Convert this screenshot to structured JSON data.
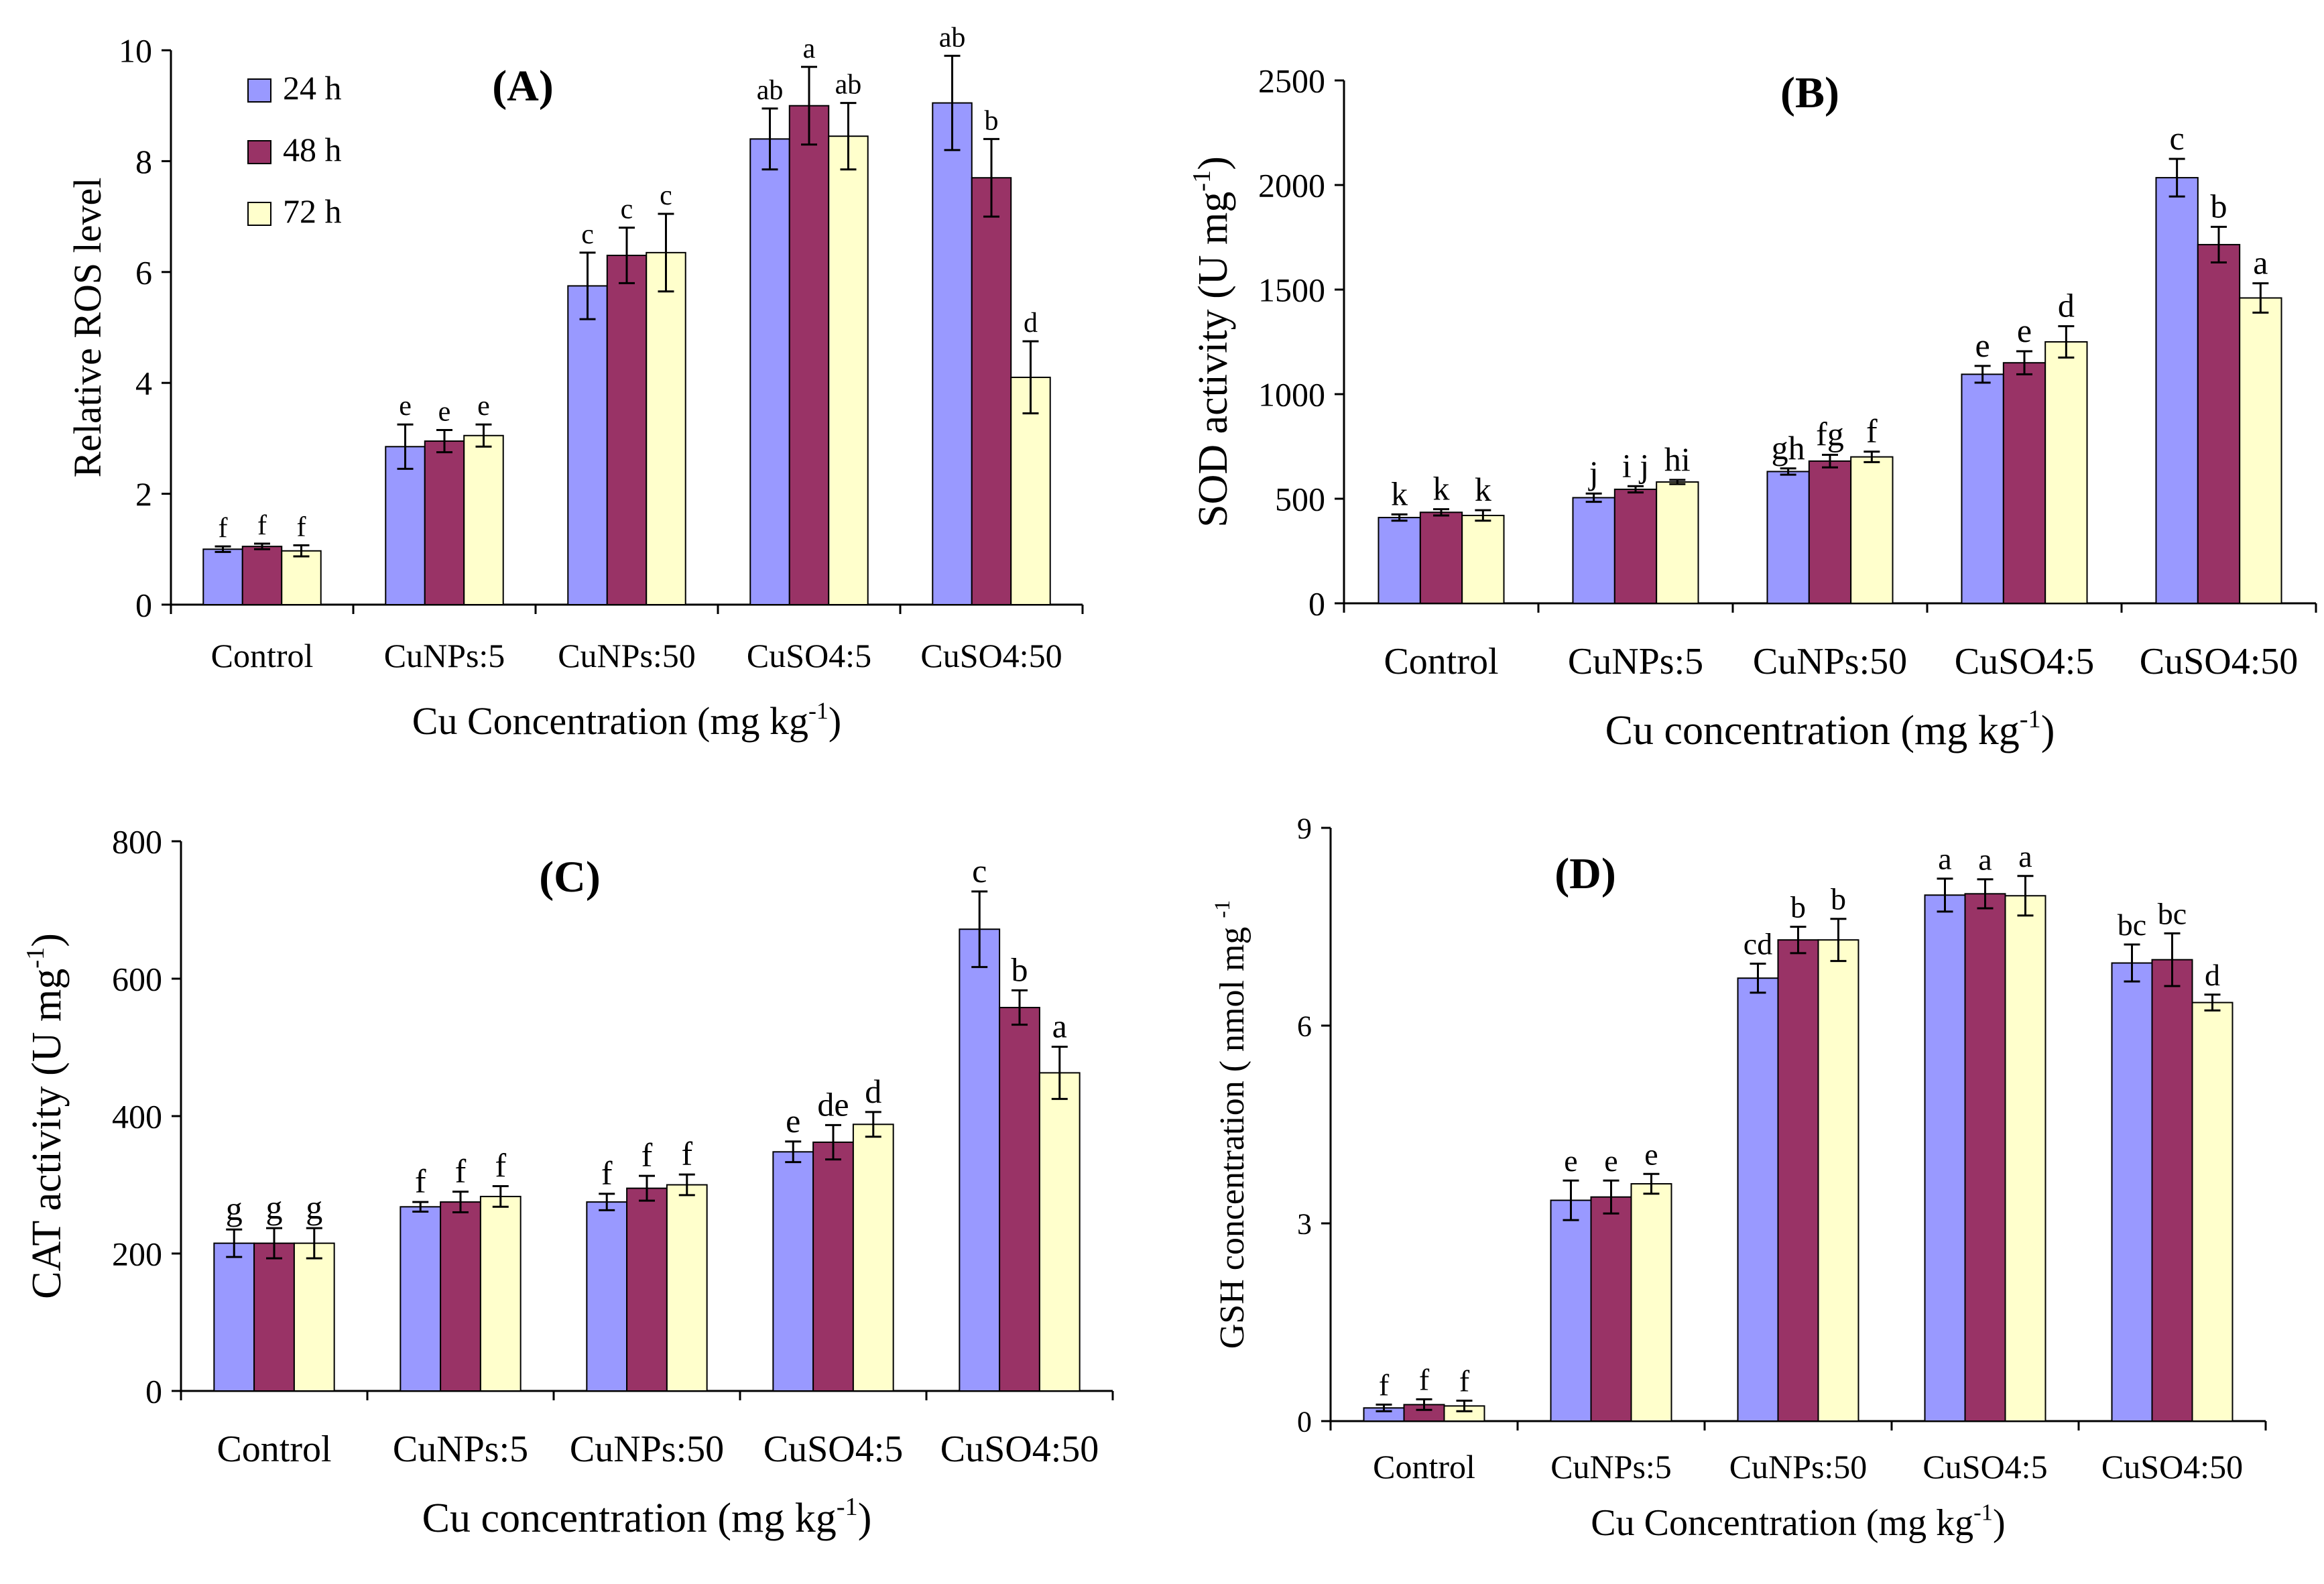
{
  "colors": {
    "s24": "#9999ff",
    "s48": "#993366",
    "s72": "#ffffcc",
    "outline": "#000000"
  },
  "legend": [
    "24 h",
    "48 h",
    "72 h"
  ],
  "chart_data": [
    {
      "type": "bar",
      "panel": "(A)",
      "ylabel": "Relative ROS level",
      "xlabel": "Cu Concentration (mg kg",
      "xlabel_sup": "-1",
      "xlabel_end": ")",
      "categories": [
        "Control",
        "CuNPs:5",
        "CuNPs:50",
        "CuSO4:5",
        "CuSO4:50"
      ],
      "ylim": [
        0,
        10
      ],
      "yticks": [
        "0",
        "2",
        "4",
        "6",
        "8",
        "10"
      ],
      "legend_position": "top-left",
      "series": [
        {
          "name": "24 h",
          "values": [
            1.0,
            2.85,
            5.75,
            8.4,
            9.05
          ],
          "errors": [
            0.05,
            0.4,
            0.6,
            0.55,
            0.85
          ],
          "letters": [
            "f",
            "e",
            "c",
            "ab",
            "ab"
          ]
        },
        {
          "name": "48 h",
          "values": [
            1.05,
            2.95,
            6.3,
            9.0,
            7.7
          ],
          "errors": [
            0.05,
            0.2,
            0.5,
            0.7,
            0.7
          ],
          "letters": [
            "f",
            "e",
            "c",
            "a",
            "b"
          ]
        },
        {
          "name": "72 h",
          "values": [
            0.97,
            3.05,
            6.35,
            8.45,
            4.1
          ],
          "errors": [
            0.1,
            0.2,
            0.7,
            0.6,
            0.65
          ],
          "letters": [
            "f",
            "e",
            "c",
            "ab",
            "d"
          ]
        }
      ]
    },
    {
      "type": "bar",
      "panel": "(B)",
      "ylabel": "SOD activity (U mg",
      "ylabel_sup": "-1",
      "ylabel_end": ")",
      "xlabel": "Cu concentration (mg kg",
      "xlabel_sup": "-1",
      "xlabel_end": ")",
      "categories": [
        "Control",
        "CuNPs:5",
        "CuNPs:50",
        "CuSO4:5",
        "CuSO4:50"
      ],
      "ylim": [
        0,
        2500
      ],
      "yticks": [
        "0",
        "500",
        "1000",
        "1500",
        "2000",
        "2500"
      ],
      "series": [
        {
          "name": "24 h",
          "values": [
            410,
            505,
            630,
            1095,
            2035
          ],
          "errors": [
            15,
            20,
            15,
            40,
            90
          ],
          "letters": [
            "k",
            "j",
            "gh",
            "e",
            "c"
          ]
        },
        {
          "name": "48 h",
          "values": [
            435,
            545,
            680,
            1150,
            1715
          ],
          "errors": [
            15,
            15,
            30,
            55,
            85
          ],
          "letters": [
            "k",
            "i j",
            "fg",
            "e",
            "b"
          ]
        },
        {
          "name": "72 h",
          "values": [
            420,
            580,
            700,
            1250,
            1460
          ],
          "errors": [
            25,
            10,
            25,
            75,
            70
          ],
          "letters": [
            "k",
            "hi",
            "f",
            "d",
            "a"
          ]
        }
      ]
    },
    {
      "type": "bar",
      "panel": "(C)",
      "ylabel": "CAT activity (U mg",
      "ylabel_sup": "-1",
      "ylabel_end": ")",
      "xlabel": "Cu concentration (mg kg",
      "xlabel_sup": "-1",
      "xlabel_end": ")",
      "categories": [
        "Control",
        "CuNPs:5",
        "CuNPs:50",
        "CuSO4:5",
        "CuSO4:50"
      ],
      "ylim": [
        0,
        800
      ],
      "yticks": [
        "0",
        "200",
        "400",
        "600",
        "800"
      ],
      "series": [
        {
          "name": "24 h",
          "values": [
            215,
            268,
            275,
            348,
            672
          ],
          "errors": [
            20,
            7,
            12,
            15,
            55
          ],
          "letters": [
            "g",
            "f",
            "f",
            "e",
            "c"
          ]
        },
        {
          "name": "48 h",
          "values": [
            215,
            275,
            295,
            362,
            558
          ],
          "errors": [
            22,
            15,
            18,
            25,
            25
          ],
          "letters": [
            "g",
            "f",
            "f",
            "de",
            "b"
          ]
        },
        {
          "name": "72 h",
          "values": [
            215,
            283,
            300,
            388,
            463
          ],
          "errors": [
            22,
            15,
            15,
            18,
            38
          ],
          "letters": [
            "g",
            "f",
            "f",
            "d",
            "a"
          ]
        }
      ]
    },
    {
      "type": "bar",
      "panel": "(D)",
      "ylabel": "GSH concentration ( nmol mg ",
      "ylabel_sup": "-1",
      "ylabel_end": "",
      "xlabel": "Cu Concentration (mg kg",
      "xlabel_sup": "-1",
      "xlabel_end": ")",
      "categories": [
        "Control",
        "CuNPs:5",
        "CuNPs:50",
        "CuSO4:5",
        "CuSO4:50"
      ],
      "ylim": [
        0,
        9
      ],
      "yticks": [
        "0",
        "3",
        "6",
        "9"
      ],
      "series": [
        {
          "name": "24 h",
          "values": [
            0.2,
            3.35,
            6.72,
            7.98,
            6.95
          ],
          "errors": [
            0.05,
            0.3,
            0.22,
            0.25,
            0.28
          ],
          "letters": [
            "f",
            "e",
            "cd",
            "a",
            "bc"
          ]
        },
        {
          "name": "48 h",
          "values": [
            0.25,
            3.4,
            7.3,
            8.0,
            7.0
          ],
          "errors": [
            0.08,
            0.25,
            0.2,
            0.22,
            0.4
          ],
          "letters": [
            "f",
            "e",
            "b",
            "a",
            "bc"
          ]
        },
        {
          "name": "72 h",
          "values": [
            0.23,
            3.6,
            7.3,
            7.97,
            6.35
          ],
          "errors": [
            0.08,
            0.15,
            0.32,
            0.3,
            0.12
          ],
          "letters": [
            "f",
            "e",
            "b",
            "a",
            "d"
          ]
        }
      ]
    }
  ]
}
